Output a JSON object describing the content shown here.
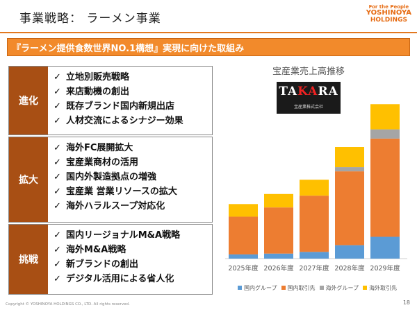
{
  "header": {
    "title": "事業戦略： ラーメン事業",
    "logo_tag": "For the People",
    "logo_name": "YOSHINOYA",
    "logo_sub": "HOLDINGS"
  },
  "banner": "『ラーメン提供食数世界NO.1構想』実現に向けた取組み",
  "strategies": [
    {
      "label": "進化",
      "items": [
        "立地別販売戦略",
        "来店動機の創出",
        "既存ブランド国内新規出店",
        "人材交流によるシナジー効果"
      ]
    },
    {
      "label": "拡大",
      "items": [
        "海外FC展開拡大",
        "宝産業商材の活用",
        "国内外製造拠点の増強",
        "宝産業 営業リソースの拡大",
        "海外ハラルスープ対応化"
      ]
    },
    {
      "label": "挑戦",
      "items": [
        "国内リージョナルM&A戦略",
        "海外M&A戦略",
        "新ブランドの創出",
        "デジタル活用による省人化"
      ]
    }
  ],
  "check_mark": "✓",
  "takara_logo": {
    "text": "TAKARA",
    "sub": "宝産業株式会社"
  },
  "chart_data": {
    "type": "bar",
    "title": "宝産業売上高推移",
    "stacked": true,
    "categories": [
      "2025年度",
      "2026年度",
      "2027年度",
      "2028年度",
      "2029年度"
    ],
    "series": [
      {
        "name": "国内グループ",
        "color": "#5b9bd5",
        "values": [
          5,
          6,
          8,
          16,
          26
        ]
      },
      {
        "name": "国内取引先",
        "color": "#ed7d31",
        "values": [
          45,
          55,
          67,
          88,
          117
        ]
      },
      {
        "name": "海外グループ",
        "color": "#a5a5a5",
        "values": [
          0,
          0,
          0,
          5,
          11
        ]
      },
      {
        "name": "海外取引先",
        "color": "#ffc000",
        "values": [
          15,
          16,
          19,
          24,
          30
        ]
      }
    ],
    "legend": "bottom"
  },
  "footer": "Copyright © YOSHINOYA HOLDINGS CO., LTD.    All rights reserved.",
  "page_number": "18"
}
